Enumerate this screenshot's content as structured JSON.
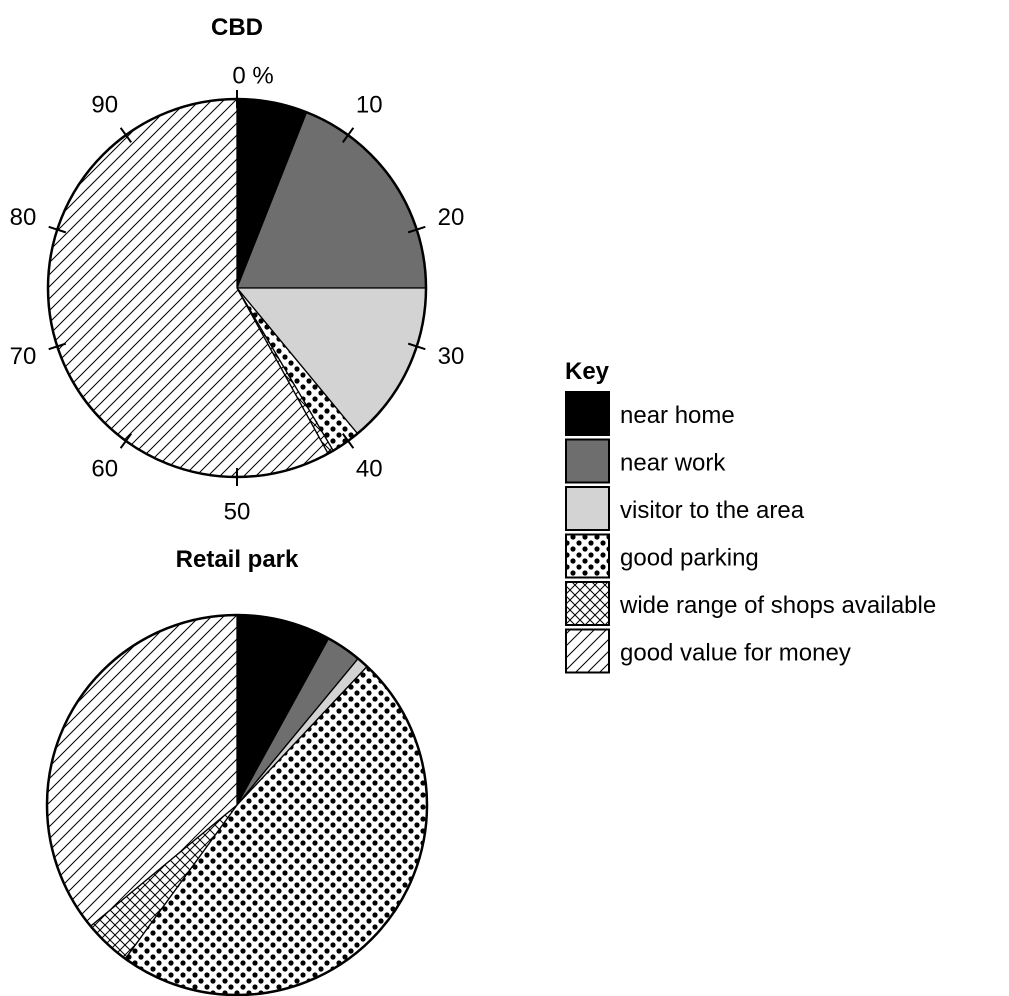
{
  "chart_data": [
    {
      "type": "pie",
      "title": "CBD",
      "scale_ticks": [
        "0 %",
        "10",
        "20",
        "30",
        "40",
        "50",
        "60",
        "70",
        "80",
        "90"
      ],
      "categories": [
        "near home",
        "near work",
        "visitor to the area",
        "good parking",
        "wide range of shops available",
        "good value for money"
      ],
      "values": [
        6,
        19,
        14,
        2.5,
        0.5,
        58
      ]
    },
    {
      "type": "pie",
      "title": "Retail park",
      "categories": [
        "near home",
        "near work",
        "visitor to the area",
        "good parking",
        "wide range of shops available",
        "good value for money"
      ],
      "values": [
        8,
        3,
        1,
        48,
        4,
        36
      ]
    }
  ],
  "legend": {
    "title": "Key",
    "placement": "right",
    "items": [
      {
        "label": "near home",
        "fill": "#000000"
      },
      {
        "label": "near work",
        "fill": "#6e6e6e"
      },
      {
        "label": "visitor to the area",
        "fill": "#d3d3d3"
      },
      {
        "label": "good parking",
        "fill": "pattern-dots"
      },
      {
        "label": "wide range of shops available",
        "fill": "pattern-crosshatch"
      },
      {
        "label": "good value for money",
        "fill": "pattern-diagonal"
      }
    ]
  }
}
